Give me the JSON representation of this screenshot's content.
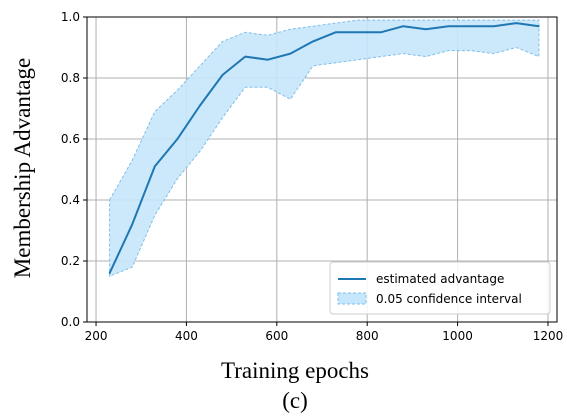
{
  "chart_data": {
    "type": "line",
    "xlabel": "Training epochs",
    "ylabel": "Membership Advantage",
    "caption": "(c)",
    "xlim": [
      180,
      1220
    ],
    "ylim": [
      0,
      1.0
    ],
    "x_ticks": [
      200,
      400,
      600,
      800,
      1000,
      1200
    ],
    "y_ticks": [
      0.0,
      0.2,
      0.4,
      0.6,
      0.8,
      1.0
    ],
    "x_tick_labels": [
      "200",
      "400",
      "600",
      "800",
      "1000",
      "1200"
    ],
    "y_tick_labels": [
      "0.0",
      "0.2",
      "0.4",
      "0.6",
      "0.8",
      "1.0"
    ],
    "grid": true,
    "legend_position": "lower-right",
    "x": [
      230,
      280,
      330,
      380,
      430,
      480,
      530,
      580,
      630,
      680,
      730,
      780,
      830,
      880,
      930,
      980,
      1030,
      1080,
      1130,
      1180
    ],
    "series": [
      {
        "name": "estimated advantage",
        "color": "#1f77b4",
        "values": [
          0.16,
          0.32,
          0.51,
          0.6,
          0.71,
          0.81,
          0.87,
          0.86,
          0.88,
          0.92,
          0.95,
          0.95,
          0.95,
          0.97,
          0.96,
          0.97,
          0.97,
          0.97,
          0.98,
          0.97
        ]
      },
      {
        "name": "0.05 confidence interval",
        "color": "#c6e6fb",
        "edge_color": "#7fbfe8",
        "lower": [
          0.15,
          0.18,
          0.35,
          0.47,
          0.56,
          0.67,
          0.77,
          0.77,
          0.73,
          0.84,
          0.85,
          0.86,
          0.87,
          0.88,
          0.87,
          0.89,
          0.89,
          0.88,
          0.9,
          0.87
        ],
        "upper": [
          0.4,
          0.53,
          0.69,
          0.76,
          0.84,
          0.92,
          0.95,
          0.94,
          0.96,
          0.97,
          0.98,
          0.99,
          0.99,
          0.99,
          0.99,
          0.99,
          0.99,
          0.99,
          0.99,
          0.99
        ]
      }
    ]
  }
}
